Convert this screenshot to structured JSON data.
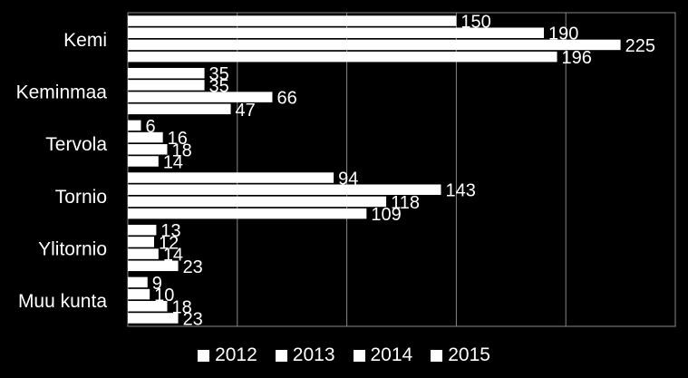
{
  "chart_data": {
    "type": "bar",
    "orientation": "horizontal",
    "categories": [
      "Kemi",
      "Keminmaa",
      "Tervola",
      "Tornio",
      "Ylitornio",
      "Muu kunta"
    ],
    "series": [
      {
        "name": "2012",
        "values": [
          150,
          35,
          6,
          94,
          13,
          9
        ]
      },
      {
        "name": "2013",
        "values": [
          190,
          35,
          16,
          143,
          12,
          10
        ]
      },
      {
        "name": "2014",
        "values": [
          225,
          66,
          18,
          118,
          14,
          18
        ]
      },
      {
        "name": "2015",
        "values": [
          196,
          47,
          14,
          109,
          23,
          23
        ]
      }
    ],
    "title": "",
    "xlabel": "",
    "ylabel": "",
    "xlim": [
      0,
      250
    ],
    "grid": true,
    "legend_position": "bottom",
    "bar_color": "#ffffff",
    "background_color": "#000000"
  }
}
